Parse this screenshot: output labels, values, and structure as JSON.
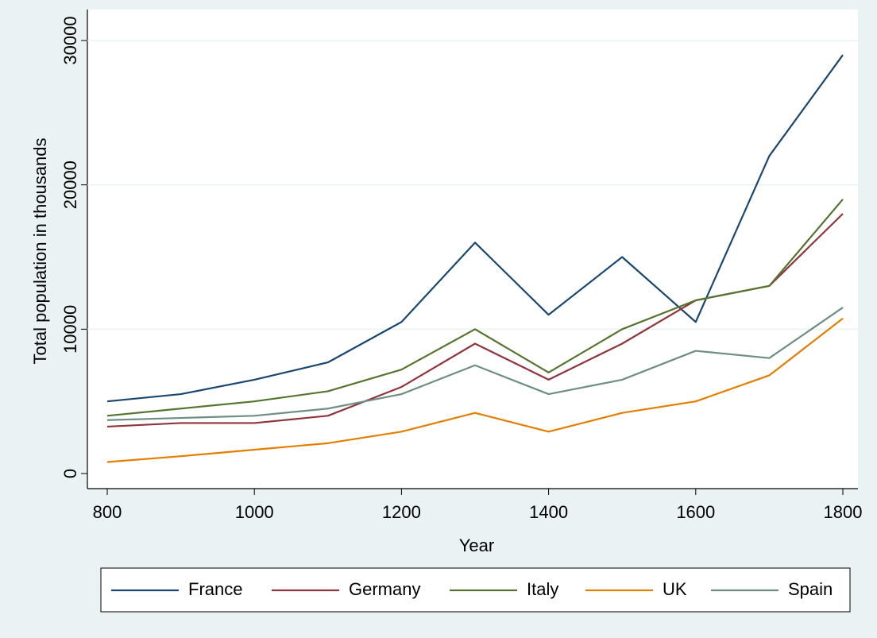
{
  "chart_data": {
    "type": "line",
    "x_label": "Year",
    "y_label": "Total population in thousands",
    "x": [
      800,
      900,
      1000,
      1100,
      1200,
      1300,
      1400,
      1500,
      1600,
      1700,
      1800
    ],
    "series": [
      {
        "name": "France",
        "color": "#1a476f",
        "values": [
          5000,
          5500,
          6500,
          7700,
          10500,
          16000,
          11000,
          15000,
          10500,
          22000,
          29000
        ]
      },
      {
        "name": "Germany",
        "color": "#90353b",
        "values": [
          3250,
          3500,
          3500,
          4000,
          6000,
          9000,
          6500,
          9000,
          12000,
          13000,
          18000
        ]
      },
      {
        "name": "Italy",
        "color": "#55752f",
        "values": [
          4000,
          4500,
          5000,
          5700,
          7200,
          10000,
          7000,
          10000,
          12000,
          13000,
          19000
        ]
      },
      {
        "name": "UK",
        "color": "#e37e00",
        "values": [
          800,
          1200,
          1650,
          2100,
          2900,
          4200,
          2900,
          4200,
          5000,
          6800,
          10750
        ]
      },
      {
        "name": "Spain",
        "color": "#6e8e84",
        "values": [
          3700,
          3850,
          4000,
          4500,
          5500,
          7500,
          5500,
          6500,
          8500,
          8000,
          11500
        ]
      }
    ],
    "xlim": [
      800,
      1800
    ],
    "xticks": [
      800,
      1000,
      1200,
      1400,
      1600,
      1800
    ],
    "ylim": [
      0,
      30000
    ],
    "yticks": [
      0,
      10000,
      20000,
      30000
    ],
    "grid": true,
    "legend": "bottom"
  }
}
